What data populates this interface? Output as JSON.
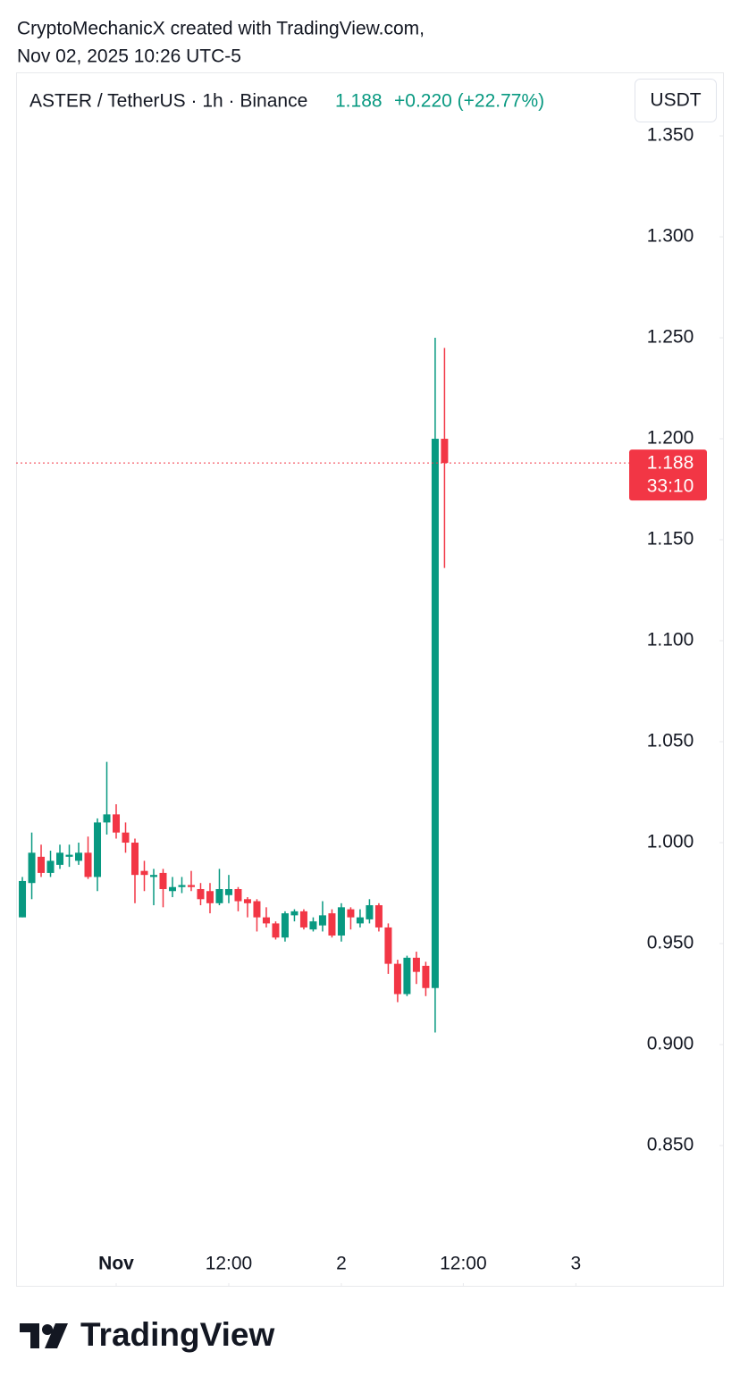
{
  "header": {
    "line1": "CryptoMechanicX created with TradingView.com,",
    "line2": "Nov 02, 2025 10:26 UTC-5"
  },
  "chart_data": {
    "type": "candlestick",
    "symbol": "ASTER / TetherUS · 1h · Binance",
    "change": "+0.220 (+22.77%)",
    "currency": "USDT",
    "countdown": "33:10",
    "up_color": "#089981",
    "down_color": "#f23645",
    "x": [
      0,
      1,
      2,
      3,
      4,
      5,
      6,
      7,
      8,
      9,
      10,
      11,
      12,
      13,
      14,
      15,
      16,
      17,
      18,
      19,
      20,
      21,
      22,
      23,
      24,
      25,
      26,
      27,
      28,
      29,
      30,
      31,
      32,
      33,
      34,
      35,
      36,
      37,
      38,
      39,
      40,
      41,
      42,
      43,
      44,
      45
    ],
    "open": [
      0.963,
      0.98,
      0.993,
      0.985,
      0.989,
      0.993,
      0.991,
      0.995,
      0.983,
      1.01,
      1.014,
      1.005,
      1.0,
      0.986,
      0.983,
      0.985,
      0.976,
      0.978,
      0.979,
      0.977,
      0.976,
      0.97,
      0.974,
      0.977,
      0.972,
      0.971,
      0.963,
      0.96,
      0.953,
      0.964,
      0.966,
      0.957,
      0.959,
      0.965,
      0.954,
      0.967,
      0.96,
      0.962,
      0.969,
      0.958,
      0.94,
      0.925,
      0.943,
      0.939,
      0.928,
      1.2
    ],
    "high": [
      0.983,
      1.005,
      0.999,
      0.996,
      0.999,
      0.999,
      1.0,
      1.003,
      1.012,
      1.04,
      1.019,
      1.01,
      1.002,
      0.991,
      0.987,
      0.987,
      0.983,
      0.983,
      0.986,
      0.98,
      0.98,
      0.987,
      0.984,
      0.978,
      0.973,
      0.972,
      0.968,
      0.961,
      0.966,
      0.967,
      0.967,
      0.963,
      0.971,
      0.967,
      0.97,
      0.968,
      0.967,
      0.972,
      0.97,
      0.96,
      0.942,
      0.944,
      0.946,
      0.941,
      1.25,
      1.245
    ],
    "low": [
      0.963,
      0.972,
      0.983,
      0.983,
      0.987,
      0.988,
      0.989,
      0.982,
      0.976,
      1.004,
      1.002,
      0.995,
      0.97,
      0.976,
      0.969,
      0.968,
      0.973,
      0.975,
      0.976,
      0.969,
      0.965,
      0.969,
      0.97,
      0.966,
      0.963,
      0.956,
      0.958,
      0.952,
      0.951,
      0.961,
      0.957,
      0.956,
      0.956,
      0.953,
      0.951,
      0.957,
      0.958,
      0.96,
      0.956,
      0.935,
      0.921,
      0.924,
      0.93,
      0.924,
      0.906,
      1.136
    ],
    "close": [
      0.981,
      0.995,
      0.985,
      0.991,
      0.995,
      0.994,
      0.995,
      0.983,
      1.01,
      1.014,
      1.005,
      1.0,
      0.984,
      0.984,
      0.984,
      0.977,
      0.978,
      0.979,
      0.978,
      0.972,
      0.97,
      0.977,
      0.977,
      0.971,
      0.97,
      0.963,
      0.96,
      0.953,
      0.965,
      0.966,
      0.958,
      0.961,
      0.964,
      0.954,
      0.968,
      0.963,
      0.963,
      0.969,
      0.958,
      0.94,
      0.925,
      0.943,
      0.936,
      0.928,
      1.2,
      1.188
    ],
    "xlim": [
      -0.67,
      64.3
    ],
    "ylim": [
      0.8,
      1.381
    ],
    "xticks": [
      {
        "value": 10,
        "label": "Nov"
      },
      {
        "value": 22,
        "label": "12:00"
      },
      {
        "value": 34,
        "label": "2"
      },
      {
        "value": 47,
        "label": "12:00"
      },
      {
        "value": 59,
        "label": "3"
      }
    ],
    "yticks": [
      {
        "value": 0.85,
        "label": "0.850"
      },
      {
        "value": 0.9,
        "label": "0.900"
      },
      {
        "value": 0.95,
        "label": "0.950"
      },
      {
        "value": 1.0,
        "label": "1.000"
      },
      {
        "value": 1.05,
        "label": "1.050"
      },
      {
        "value": 1.1,
        "label": "1.100"
      },
      {
        "value": 1.15,
        "label": "1.150"
      },
      {
        "value": 1.2,
        "label": "1.200"
      },
      {
        "value": 1.25,
        "label": "1.250"
      },
      {
        "value": 1.3,
        "label": "1.300"
      },
      {
        "value": 1.35,
        "label": "1.350"
      }
    ]
  },
  "footer": {
    "brand": "TradingView"
  }
}
